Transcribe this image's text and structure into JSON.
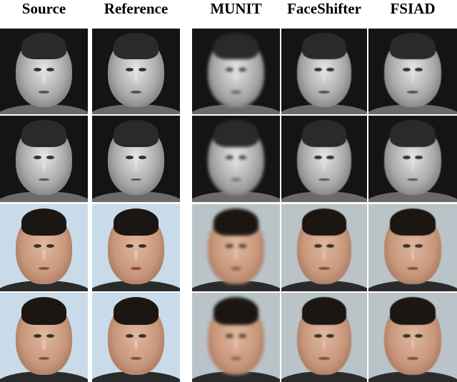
{
  "figure": {
    "columns": [
      {
        "label": "Source"
      },
      {
        "label": "Reference"
      },
      {
        "label": "MUNIT"
      },
      {
        "label": "FaceShifter"
      },
      {
        "label": "FSIAD"
      }
    ],
    "rows": [
      {
        "modality": "near-infrared grayscale"
      },
      {
        "modality": "near-infrared grayscale"
      },
      {
        "modality": "visible color"
      },
      {
        "modality": "visible color"
      }
    ]
  },
  "colors": {
    "ir_bg": "#141414",
    "ir_skin": "#a8a8a8",
    "ir_hair": "#2a2a2a",
    "vis_bg": "#c9dbe8",
    "vis_skin": "#c8977c",
    "vis_hair": "#1c1612"
  }
}
